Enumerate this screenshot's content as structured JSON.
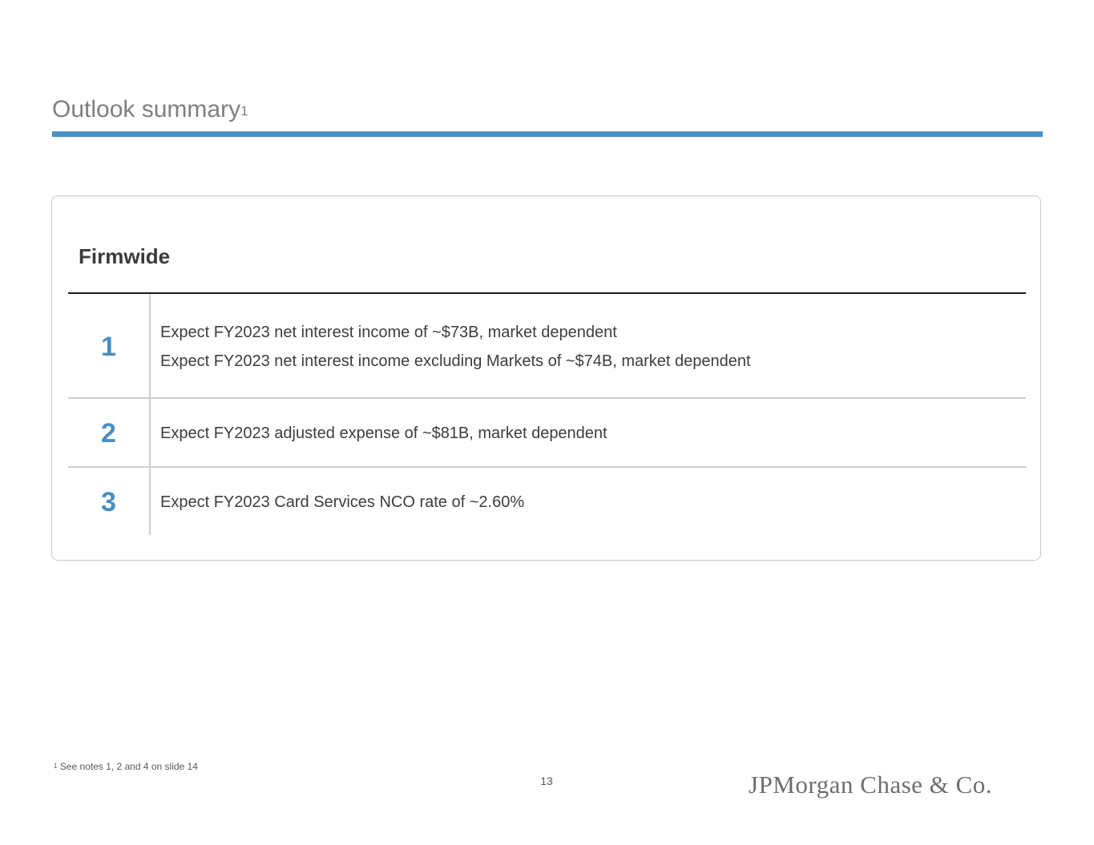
{
  "slide": {
    "title": "Outlook summary",
    "title_footnote_marker": "1",
    "section_heading": "Firmwide",
    "items": [
      {
        "number": "1",
        "lines": [
          "Expect FY2023 net interest income of ~$73B, market dependent",
          "Expect FY2023 net interest income excluding Markets of ~$74B, market dependent"
        ]
      },
      {
        "number": "2",
        "lines": [
          "Expect FY2023 adjusted expense of ~$81B, market dependent"
        ]
      },
      {
        "number": "3",
        "lines": [
          "Expect FY2023 Card Services NCO rate of ~2.60%"
        ]
      }
    ],
    "footnote_marker": "1",
    "footnote_text": " See notes 1, 2 and 4 on slide 14",
    "page_number": "13",
    "logo_text": "JPMorgan Chase & Co."
  },
  "colors": {
    "accent": "#4a90c2",
    "number": "#4a8fc1",
    "title": "#7f7f7f",
    "body_text": "#3d3d3d"
  }
}
